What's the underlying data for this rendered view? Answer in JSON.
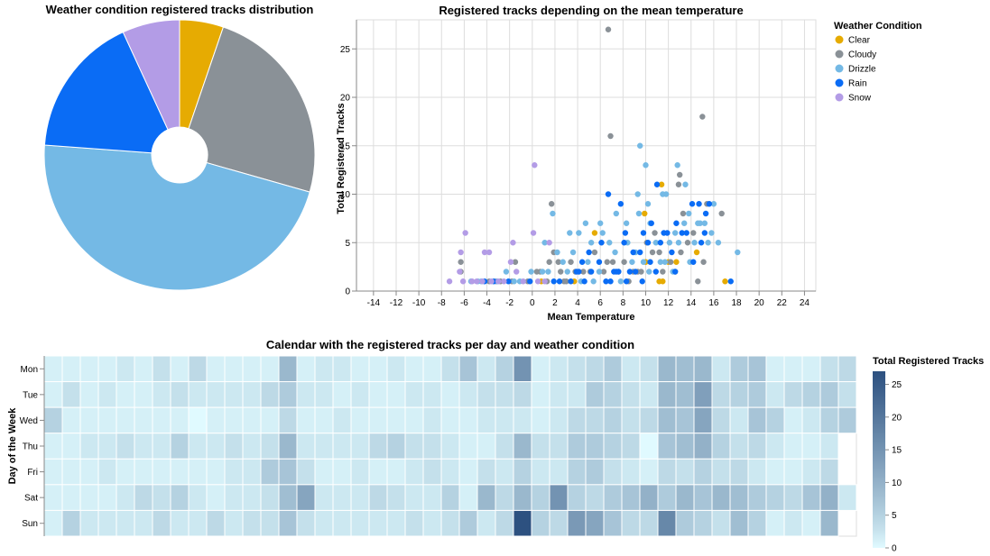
{
  "colors": {
    "Clear": "#e6ab02",
    "Cloudy": "#8a9197",
    "Drizzle": "#74b9e5",
    "Rain": "#0a6cf5",
    "Snow": "#b39ce6"
  },
  "chart_data": [
    {
      "type": "pie",
      "title": "Weather condition registered tracks distribution",
      "categories": [
        "Clear",
        "Cloudy",
        "Drizzle",
        "Rain",
        "Snow"
      ],
      "values": [
        29,
        134,
        259,
        94,
        38
      ],
      "donut": true
    },
    {
      "type": "scatter",
      "title": "Registered tracks depending on the mean temperature",
      "xlabel": "Mean Temperature",
      "ylabel": "Total Registered Tracks",
      "xlim": [
        -15.5,
        25
      ],
      "ylim": [
        0,
        28
      ],
      "xticks": [
        -14,
        -12,
        -10,
        -8,
        -6,
        -4,
        -2,
        0,
        2,
        4,
        6,
        8,
        10,
        12,
        14,
        16,
        18,
        20,
        22,
        24
      ],
      "yticks": [
        0,
        5,
        10,
        15,
        20,
        25
      ],
      "grid": true,
      "legend_title": "Weather Condition",
      "legend_position": "right",
      "series": [
        {
          "name": "Clear",
          "points": [
            [
              5.5,
              6
            ],
            [
              9.9,
              8
            ],
            [
              10,
              3
            ],
            [
              11.2,
              1
            ],
            [
              11.4,
              11
            ],
            [
              11.5,
              1
            ],
            [
              12,
              3
            ],
            [
              12.7,
              3
            ],
            [
              14.5,
              4
            ],
            [
              17,
              1
            ],
            [
              0.8,
              1
            ],
            [
              3.7,
              1
            ]
          ]
        },
        {
          "name": "Cloudy",
          "points": [
            [
              6.7,
              27
            ],
            [
              6.9,
              16
            ],
            [
              15,
              18
            ],
            [
              13,
              12
            ],
            [
              16.7,
              8
            ],
            [
              1.7,
              9
            ],
            [
              -6.3,
              2
            ],
            [
              -6.3,
              3
            ],
            [
              -3.8,
              1
            ],
            [
              -3.2,
              1
            ],
            [
              -2.8,
              1
            ],
            [
              -1.8,
              1
            ],
            [
              -1.5,
              3
            ],
            [
              -0.4,
              1
            ],
            [
              0.4,
              2
            ],
            [
              0.7,
              2
            ],
            [
              1.3,
              1
            ],
            [
              1.5,
              3
            ],
            [
              1.9,
              4
            ],
            [
              2.3,
              3
            ],
            [
              2.5,
              2
            ],
            [
              2.8,
              1
            ],
            [
              3,
              1
            ],
            [
              3.4,
              3
            ],
            [
              3.8,
              2
            ],
            [
              4.5,
              2
            ],
            [
              5.1,
              2
            ],
            [
              5.5,
              4
            ],
            [
              6.3,
              2
            ],
            [
              6.6,
              3
            ],
            [
              7.1,
              3
            ],
            [
              7.6,
              2
            ],
            [
              8.1,
              3
            ],
            [
              8.5,
              1
            ],
            [
              8.9,
              2
            ],
            [
              9.3,
              2
            ],
            [
              9.6,
              2
            ],
            [
              10.1,
              5
            ],
            [
              10.6,
              4
            ],
            [
              11.2,
              4
            ],
            [
              11.5,
              2
            ],
            [
              12.2,
              3
            ],
            [
              12.6,
              2
            ],
            [
              13.1,
              4
            ],
            [
              13.3,
              8
            ],
            [
              13.7,
              5
            ],
            [
              14.2,
              6
            ],
            [
              14.6,
              1
            ],
            [
              15.1,
              3
            ],
            [
              15.4,
              9
            ],
            [
              12.9,
              11
            ],
            [
              10.8,
              6
            ]
          ]
        },
        {
          "name": "Drizzle",
          "points": [
            [
              9.5,
              15
            ],
            [
              10,
              13
            ],
            [
              12.8,
              13
            ],
            [
              11.5,
              10
            ],
            [
              11.8,
              10
            ],
            [
              9.3,
              10
            ],
            [
              10.2,
              9
            ],
            [
              9.4,
              8
            ],
            [
              1.8,
              8
            ],
            [
              4.7,
              7
            ],
            [
              6,
              7
            ],
            [
              7.4,
              8
            ],
            [
              8.3,
              7
            ],
            [
              10.4,
              7
            ],
            [
              13.5,
              11
            ],
            [
              13.8,
              8
            ],
            [
              14.6,
              7
            ],
            [
              15.2,
              7
            ],
            [
              16,
              9
            ],
            [
              12.6,
              6
            ],
            [
              5.2,
              5
            ],
            [
              4.1,
              6
            ],
            [
              3.3,
              6
            ],
            [
              2.2,
              4
            ],
            [
              1.1,
              5
            ],
            [
              0.9,
              2
            ],
            [
              -0.1,
              2
            ],
            [
              -1.6,
              1
            ],
            [
              -2.3,
              2
            ],
            [
              -3.1,
              1
            ],
            [
              -4.5,
              1
            ],
            [
              -5.4,
              1
            ],
            [
              -4.8,
              1
            ],
            [
              2.7,
              3
            ],
            [
              3.1,
              2
            ],
            [
              3.6,
              4
            ],
            [
              4.3,
              1
            ],
            [
              4.9,
              3
            ],
            [
              5.4,
              1
            ],
            [
              5.9,
              2
            ],
            [
              6.2,
              6
            ],
            [
              6.8,
              5
            ],
            [
              7.3,
              4
            ],
            [
              7.8,
              1
            ],
            [
              8.4,
              5
            ],
            [
              8.8,
              3
            ],
            [
              9.1,
              4
            ],
            [
              9.8,
              3
            ],
            [
              10.3,
              2
            ],
            [
              10.9,
              5
            ],
            [
              11.3,
              3
            ],
            [
              11.7,
              3
            ],
            [
              12.1,
              5
            ],
            [
              12.4,
              2
            ],
            [
              12.9,
              5
            ],
            [
              13.4,
              7
            ],
            [
              13.9,
              3
            ],
            [
              14.3,
              5
            ],
            [
              14.8,
              7
            ],
            [
              15.5,
              5
            ],
            [
              15.8,
              6
            ],
            [
              16.4,
              5
            ],
            [
              18.1,
              4
            ],
            [
              1.4,
              2
            ],
            [
              -1.1,
              1
            ]
          ]
        },
        {
          "name": "Rain",
          "points": [
            [
              6.7,
              10
            ],
            [
              11,
              11
            ],
            [
              12.7,
              7
            ],
            [
              14.1,
              9
            ],
            [
              14.7,
              9
            ],
            [
              15.3,
              8
            ],
            [
              15.6,
              9
            ],
            [
              7.8,
              9
            ],
            [
              11.9,
              6
            ],
            [
              10.5,
              7
            ],
            [
              9.8,
              6
            ],
            [
              10.2,
              5
            ],
            [
              8.9,
              4
            ],
            [
              8.1,
              5
            ],
            [
              7.4,
              2
            ],
            [
              6.5,
              1
            ],
            [
              5.9,
              3
            ],
            [
              5.2,
              2
            ],
            [
              4.6,
              1
            ],
            [
              4.1,
              2
            ],
            [
              3.4,
              1
            ],
            [
              2.4,
              1
            ],
            [
              1.9,
              1
            ],
            [
              -0.2,
              1
            ],
            [
              -2.1,
              1
            ],
            [
              -3.4,
              1
            ],
            [
              -4.2,
              1
            ],
            [
              3.9,
              2
            ],
            [
              4.4,
              3
            ],
            [
              5,
              4
            ],
            [
              6.1,
              5
            ],
            [
              6.9,
              1
            ],
            [
              7.2,
              2
            ],
            [
              7.6,
              2
            ],
            [
              8.3,
              1
            ],
            [
              8.6,
              2
            ],
            [
              9.1,
              2
            ],
            [
              9.7,
              1
            ],
            [
              10.4,
              3
            ],
            [
              10.9,
              2
            ],
            [
              11.3,
              5
            ],
            [
              11.6,
              6
            ],
            [
              12.3,
              4
            ],
            [
              12.6,
              2
            ],
            [
              13.2,
              6
            ],
            [
              13.6,
              6
            ],
            [
              14.2,
              3
            ],
            [
              14.9,
              5
            ],
            [
              15.2,
              6
            ],
            [
              17.5,
              1
            ],
            [
              8.2,
              6
            ],
            [
              9.5,
              4
            ]
          ]
        },
        {
          "name": "Snow",
          "points": [
            [
              0.2,
              13
            ],
            [
              -5.9,
              6
            ],
            [
              0.1,
              6
            ],
            [
              -1.7,
              5
            ],
            [
              -6.3,
              4
            ],
            [
              -4.2,
              4
            ],
            [
              -3.8,
              4
            ],
            [
              -1.9,
              3
            ],
            [
              -6.4,
              2
            ],
            [
              -7.3,
              1
            ],
            [
              -6.1,
              1
            ],
            [
              -5.3,
              1
            ],
            [
              -4.9,
              1
            ],
            [
              -4.4,
              1
            ],
            [
              -3.6,
              1
            ],
            [
              -3,
              1
            ],
            [
              -2.5,
              1
            ],
            [
              -1.4,
              2
            ],
            [
              -0.8,
              1
            ],
            [
              0.5,
              1
            ],
            [
              1.5,
              5
            ],
            [
              1.1,
              1
            ]
          ]
        }
      ]
    },
    {
      "type": "heatmap",
      "title": "Calendar with the registered tracks per day and weather condition",
      "ylabel": "Day of the Week",
      "rows": [
        "Mon",
        "Tue",
        "Wed",
        "Thu",
        "Fri",
        "Sat",
        "Sun"
      ],
      "legend_title": "Total Registered Tracks",
      "color_ticks": [
        0,
        5,
        10,
        15,
        20,
        25
      ],
      "color_range": [
        0,
        27
      ],
      "values": [
        [
          1,
          1,
          1,
          1,
          2,
          1,
          3,
          1,
          4,
          1,
          1,
          1,
          1,
          9,
          1,
          2,
          2,
          1,
          1,
          2,
          1,
          1,
          3,
          7,
          2,
          5,
          15,
          1,
          2,
          3,
          4,
          6,
          2,
          3,
          9,
          8,
          9,
          2,
          6,
          7,
          1,
          1,
          1,
          3,
          4
        ],
        [
          1,
          3,
          1,
          2,
          1,
          1,
          2,
          3,
          2,
          2,
          2,
          2,
          4,
          6,
          2,
          2,
          1,
          2,
          1,
          1,
          2,
          2,
          1,
          2,
          3,
          3,
          4,
          1,
          2,
          2,
          6,
          5,
          3,
          2,
          9,
          8,
          13,
          4,
          5,
          6,
          2,
          4,
          5,
          6,
          3
        ],
        [
          5,
          1,
          1,
          1,
          1,
          1,
          1,
          1,
          0,
          1,
          1,
          1,
          1,
          4,
          1,
          1,
          2,
          1,
          1,
          1,
          1,
          2,
          1,
          1,
          2,
          2,
          2,
          1,
          2,
          4,
          4,
          5,
          3,
          4,
          8,
          7,
          12,
          4,
          2,
          7,
          5,
          1,
          2,
          5,
          6
        ],
        [
          1,
          1,
          2,
          2,
          3,
          2,
          2,
          5,
          2,
          2,
          3,
          2,
          3,
          9,
          2,
          2,
          2,
          2,
          4,
          5,
          3,
          3,
          2,
          1,
          1,
          3,
          9,
          3,
          3,
          6,
          6,
          5,
          4,
          0,
          7,
          8,
          10,
          5,
          3,
          4,
          2,
          1,
          1,
          2,
          null
        ],
        [
          1,
          1,
          1,
          2,
          1,
          1,
          1,
          1,
          1,
          1,
          2,
          2,
          6,
          7,
          3,
          1,
          1,
          2,
          1,
          1,
          2,
          3,
          2,
          1,
          3,
          2,
          5,
          2,
          2,
          5,
          6,
          3,
          2,
          1,
          4,
          3,
          5,
          3,
          4,
          2,
          1,
          1,
          2,
          4,
          null
        ],
        [
          1,
          1,
          1,
          1,
          2,
          4,
          3,
          5,
          2,
          1,
          2,
          2,
          3,
          8,
          12,
          2,
          2,
          2,
          4,
          3,
          2,
          2,
          5,
          1,
          9,
          4,
          9,
          5,
          15,
          5,
          4,
          6,
          7,
          10,
          6,
          9,
          7,
          9,
          8,
          6,
          5,
          4,
          7,
          10,
          2
        ],
        [
          1,
          5,
          2,
          2,
          2,
          2,
          4,
          2,
          2,
          4,
          2,
          3,
          3,
          7,
          3,
          2,
          2,
          2,
          2,
          2,
          3,
          2,
          3,
          6,
          2,
          4,
          27,
          5,
          4,
          14,
          12,
          7,
          4,
          4,
          17,
          6,
          5,
          3,
          8,
          5,
          1,
          2,
          1,
          9,
          null
        ]
      ]
    }
  ]
}
